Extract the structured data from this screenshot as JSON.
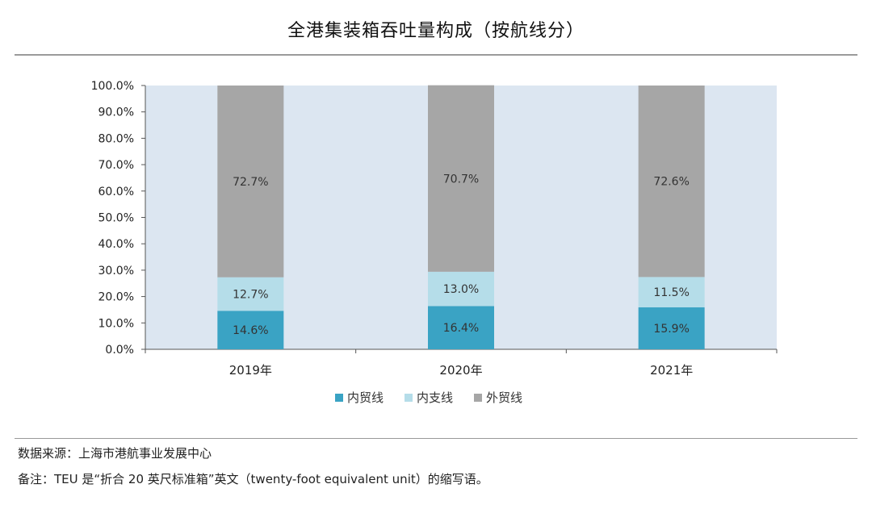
{
  "title": "全港集装箱吞吐量构成（按航线分）",
  "chart_data": {
    "type": "bar",
    "stacked": true,
    "categories": [
      "2019年",
      "2020年",
      "2021年"
    ],
    "series": [
      {
        "name": "内贸线",
        "values": [
          14.6,
          16.4,
          15.9
        ],
        "labels": [
          "14.6%",
          "16.4%",
          "15.9%"
        ],
        "color": "#3aa3c4"
      },
      {
        "name": "内支线",
        "values": [
          12.7,
          13.0,
          11.5
        ],
        "labels": [
          "12.7%",
          "13.0%",
          "11.5%"
        ],
        "color": "#b5dde9"
      },
      {
        "name": "外贸线",
        "values": [
          72.7,
          70.7,
          72.6
        ],
        "labels": [
          "72.7%",
          "70.7%",
          "72.6%"
        ],
        "color": "#a6a6a6"
      }
    ],
    "ylim": [
      0,
      100
    ],
    "yticks": [
      "0.0%",
      "10.0%",
      "20.0%",
      "30.0%",
      "40.0%",
      "50.0%",
      "60.0%",
      "70.0%",
      "80.0%",
      "90.0%",
      "100.0%"
    ],
    "plot_background": "#dce6f1",
    "legend_position": "bottom"
  },
  "footer": {
    "source": "数据来源：上海市港航事业发展中心",
    "note": "备注：TEU 是“折合 20 英尺标准箱”英文（twenty-foot equivalent unit）的缩写语。"
  }
}
